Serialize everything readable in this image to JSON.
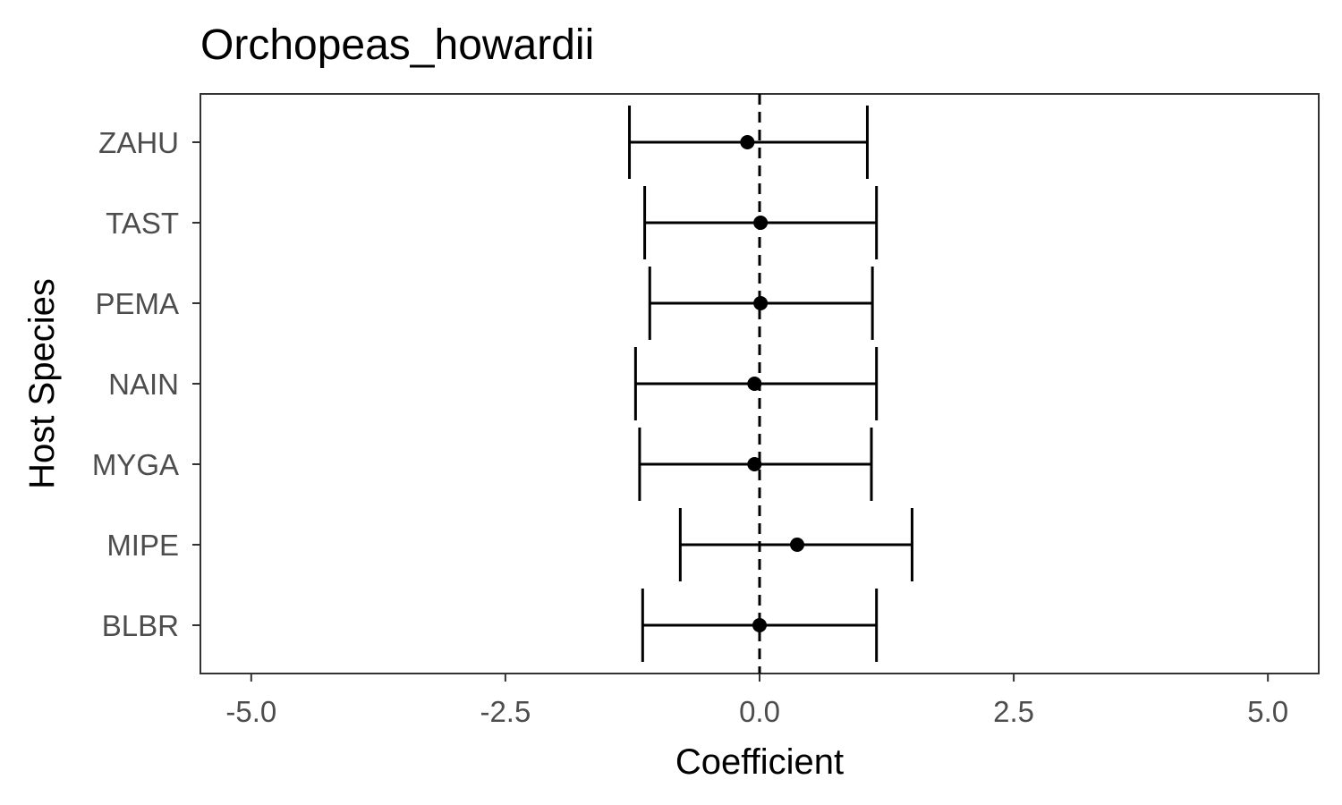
{
  "chart_data": {
    "type": "scatter",
    "title": "Orchopeas_howardii",
    "xlabel": "Coefficient",
    "ylabel": "Host Species",
    "xlim": [
      -5.5,
      5.5
    ],
    "x_ticks": [
      -5.0,
      -2.5,
      0.0,
      2.5,
      5.0
    ],
    "x_tick_labels": [
      "-5.0",
      "-2.5",
      "0.0",
      "2.5",
      "5.0"
    ],
    "categories": [
      "BLBR",
      "MIPE",
      "MYGA",
      "NAIN",
      "PEMA",
      "TAST",
      "ZAHU"
    ],
    "estimates": [
      0.0,
      0.37,
      -0.05,
      -0.05,
      0.01,
      0.01,
      -0.12
    ],
    "lower": [
      -1.15,
      -0.78,
      -1.18,
      -1.22,
      -1.08,
      -1.13,
      -1.28
    ],
    "upper": [
      1.15,
      1.5,
      1.1,
      1.15,
      1.11,
      1.15,
      1.06
    ],
    "reference_line": {
      "x": 0,
      "style": "dashed"
    },
    "grid": false,
    "legend": "none"
  }
}
